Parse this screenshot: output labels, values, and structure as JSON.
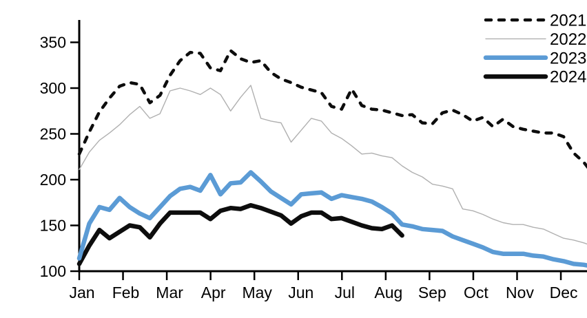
{
  "chart_data": {
    "type": "line",
    "title": "",
    "frequency": "weekly",
    "x_axis": {
      "tick_labels": [
        "Jan",
        "Feb",
        "Mar",
        "Apr",
        "May",
        "Jun",
        "Jul",
        "Aug",
        "Sep",
        "Oct",
        "Nov",
        "Dec"
      ]
    },
    "y_axis": {
      "ticks": [
        100,
        150,
        200,
        250,
        300,
        350
      ],
      "range": [
        100,
        355
      ]
    },
    "legend": {
      "position": "top-right",
      "entries": [
        "2021",
        "2022",
        "2023",
        "2024"
      ]
    },
    "series": [
      {
        "name": "2021",
        "style": "dashed",
        "color": "#0d0d0d",
        "width": 4.5,
        "values": [
          228,
          252,
          274,
          289,
          302,
          306,
          304,
          284,
          292,
          314,
          330,
          339,
          338,
          322,
          319,
          341,
          332,
          328,
          330,
          317,
          310,
          306,
          301,
          298,
          295,
          280,
          277,
          299,
          281,
          277,
          276,
          273,
          270,
          271,
          262,
          261,
          273,
          276,
          271,
          264,
          268,
          258,
          266,
          258,
          255,
          253,
          251,
          251,
          247,
          229,
          219,
          205,
          215
        ]
      },
      {
        "name": "2022",
        "style": "solid-thin",
        "color": "#b0b0b0",
        "width": 1.4,
        "values": [
          211,
          230,
          243,
          251,
          260,
          271,
          280,
          267,
          272,
          297,
          300,
          297,
          293,
          300,
          293,
          275,
          290,
          303,
          267,
          264,
          262,
          241,
          254,
          267,
          264,
          251,
          245,
          237,
          228,
          229,
          226,
          224,
          215,
          208,
          203,
          195,
          193,
          190,
          168,
          166,
          162,
          157,
          153,
          151,
          151,
          148,
          146,
          141,
          136,
          134,
          131,
          127,
          114
        ]
      },
      {
        "name": "2023",
        "style": "solid-thick",
        "color": "#5b9bd5",
        "width": 6.5,
        "values": [
          114,
          152,
          170,
          167,
          180,
          170,
          163,
          158,
          170,
          182,
          190,
          192,
          188,
          205,
          184,
          196,
          197,
          208,
          198,
          187,
          180,
          173,
          184,
          185,
          186,
          179,
          183,
          181,
          179,
          176,
          170,
          163,
          151,
          149,
          146,
          145,
          144,
          138,
          134,
          130,
          126,
          121,
          119,
          119,
          119,
          117,
          116,
          113,
          111,
          108,
          107,
          105,
          100
        ]
      },
      {
        "name": "2024",
        "style": "solid-thick",
        "color": "#0d0d0d",
        "width": 6.5,
        "values": [
          108,
          128,
          145,
          136,
          143,
          150,
          148,
          137,
          152,
          164,
          164,
          164,
          164,
          157,
          166,
          169,
          168,
          172,
          169,
          165,
          161,
          152,
          160,
          164,
          164,
          157,
          158,
          154,
          150,
          147,
          146,
          150,
          139
        ]
      }
    ],
    "notes": "weekly series Jan-Dec; 2024 line ends in mid-August"
  }
}
